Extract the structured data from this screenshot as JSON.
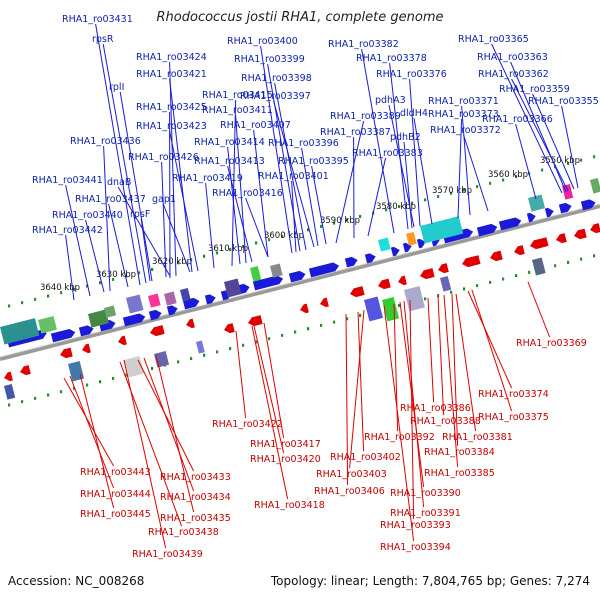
{
  "title": "Rhodococcus jostii RHA1, complete genome",
  "footer": {
    "accession": "Accession: NC_008268",
    "topology": "Topology: linear; Length: 7,804,765 bp; Genes: 7,274"
  },
  "ticks": [
    "3550 kbp",
    "3560 kbp",
    "3570 kbp",
    "3580 kbp",
    "3590 kbp",
    "3600 kbp",
    "3610 kbp",
    "3620 kbp",
    "3630 kbp",
    "3640 kbp"
  ],
  "top_labels": [
    "RHA1_ro03431",
    "rpsR",
    "rplI",
    "RHA1_ro03424",
    "RHA1_ro03421",
    "RHA1_ro03425",
    "RHA1_ro03415",
    "RHA1_ro03411",
    "RHA1_ro03423",
    "RHA1_ro03407",
    "RHA1_ro03436",
    "RHA1_ro03426",
    "RHA1_ro03414",
    "RHA1_ro03413",
    "RHA1_ro03419",
    "RHA1_ro03441",
    "dnaB",
    "RHA1_ro03437",
    "gap1",
    "RHA1_ro03416",
    "RHA1_ro03440",
    "rpsF",
    "RHA1_ro03442",
    "RHA1_ro03400",
    "RHA1_ro03399",
    "RHA1_ro03398",
    "RHA1_ro03397",
    "RHA1_ro03396",
    "RHA1_ro03395",
    "RHA1_ro03401",
    "RHA1_ro03382",
    "RHA1_ro03378",
    "RHA1_ro03376",
    "RHA1_ro03389",
    "RHA1_ro03387",
    "pdhA3",
    "pdhB2",
    "RHA1_ro03383",
    "RHA1_ro03373",
    "dldH4",
    "RHA1_ro03371",
    "RHA1_ro03372",
    "RHA1_ro03365",
    "RHA1_ro03363",
    "RHA1_ro03362",
    "RHA1_ro03359",
    "RHA1_ro03355",
    "RHA1_ro03366"
  ],
  "bottom_labels": [
    "RHA1_ro03369",
    "RHA1_ro03374",
    "RHA1_ro03375",
    "RHA1_ro03386",
    "RHA1_ro03388",
    "RHA1_ro03381",
    "RHA1_ro03392",
    "RHA1_ro03384",
    "RHA1_ro03402",
    "RHA1_ro03385",
    "RHA1_ro03403",
    "RHA1_ro03406",
    "RHA1_ro03390",
    "RHA1_ro03391",
    "RHA1_ro03393",
    "RHA1_ro03394",
    "RHA1_ro03422",
    "RHA1_ro03417",
    "RHA1_ro03420",
    "RHA1_ro03418",
    "RHA1_ro03443",
    "RHA1_ro03433",
    "RHA1_ro03444",
    "RHA1_ro03434",
    "RHA1_ro03445",
    "RHA1_ro03435",
    "RHA1_ro03438",
    "RHA1_ro03439"
  ],
  "colors": {
    "forward": "#1a1ad8",
    "reverse": "#e00000",
    "label_top": "#0b1fa8",
    "label_bottom": "#c40000",
    "backbone": "#888888",
    "tick_green": "#1a8a1a"
  }
}
